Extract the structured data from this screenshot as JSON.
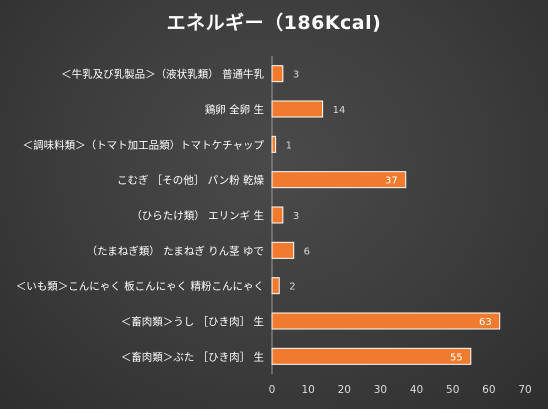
{
  "chart_data": {
    "type": "bar",
    "orientation": "horizontal",
    "title": "エネルギー（186Kcal)",
    "categories": [
      "＜牛乳及び乳製品＞（液状乳類） 普通牛乳",
      "鶏卵 全卵 生",
      "＜調味料類＞（トマト加工品類）トマトケチャップ",
      "こむぎ ［その他］ パン粉 乾燥",
      "（ひらたけ類） エリンギ 生",
      "（たまねぎ類） たまねぎ りん茎 ゆで",
      "＜いも類＞こんにゃく 板こんにゃく 精粉こんにゃく",
      "＜畜肉類＞うし ［ひき肉］ 生",
      "＜畜肉類＞ぶた ［ひき肉］ 生"
    ],
    "values": [
      3,
      14,
      1,
      37,
      3,
      6,
      2,
      63,
      55
    ],
    "xlim": [
      0,
      70
    ],
    "xticks": [
      0,
      10,
      20,
      30,
      40,
      50,
      60,
      70
    ],
    "grid": false,
    "legend": "none",
    "bar_color": "#f07b2f",
    "bar_edge_color": "#ffffff"
  }
}
